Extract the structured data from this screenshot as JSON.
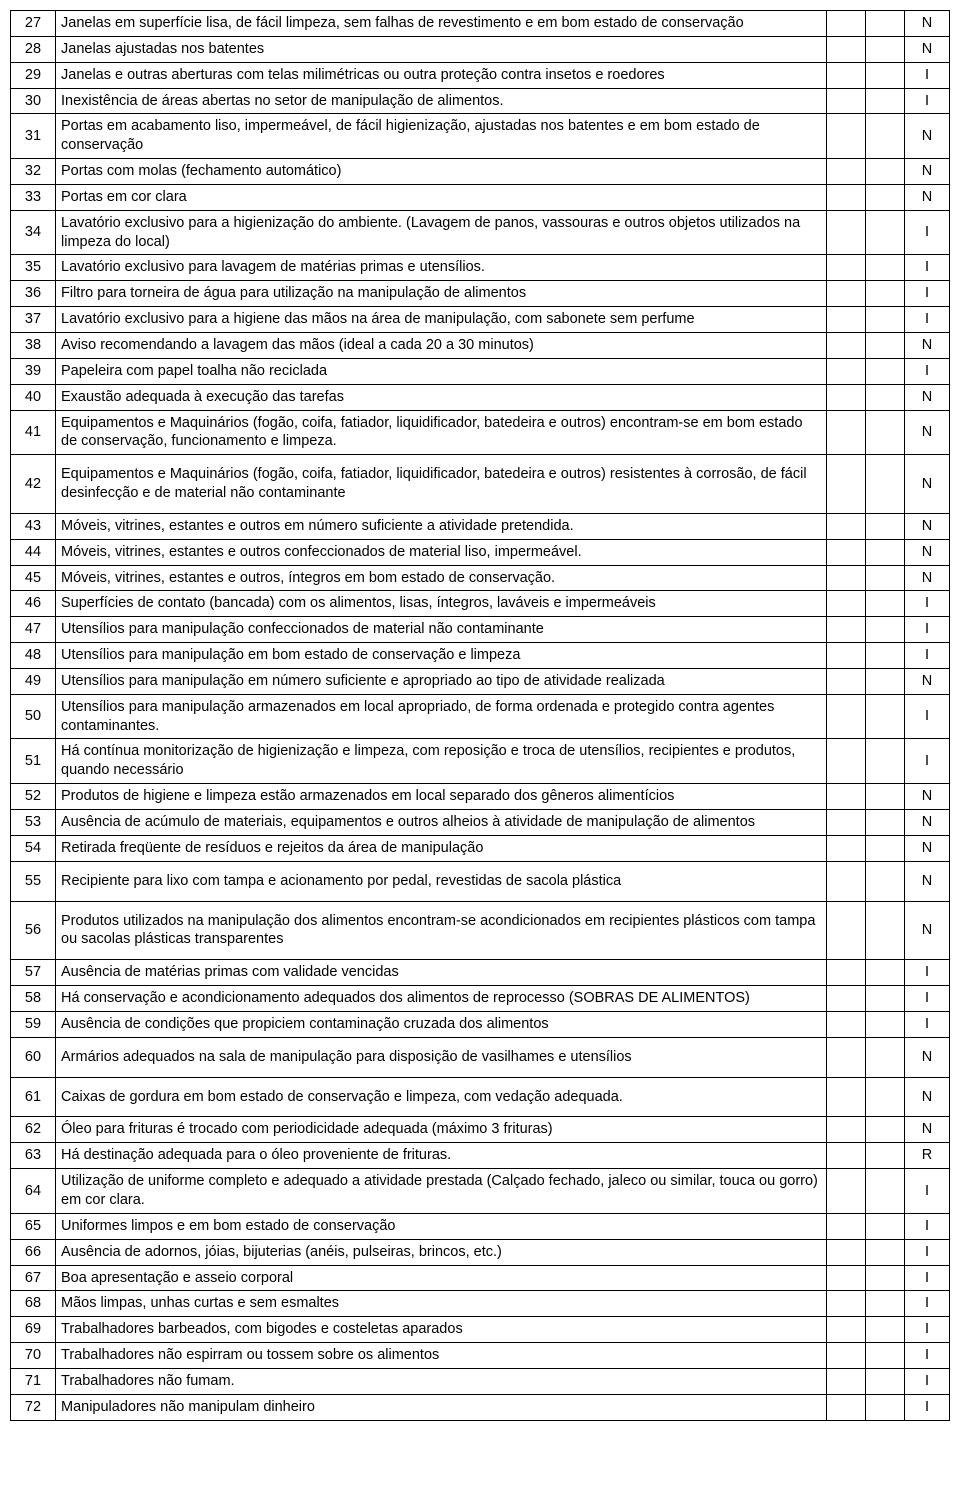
{
  "rows": [
    {
      "num": "27",
      "desc": "Janelas em superfície lisa, de fácil limpeza, sem falhas de revestimento e em bom estado de conservação",
      "code": "N"
    },
    {
      "num": "28",
      "desc": "Janelas ajustadas nos batentes",
      "code": "N"
    },
    {
      "num": "29",
      "desc": "Janelas e outras aberturas com telas milimétricas ou outra proteção contra insetos e roedores",
      "code": "I"
    },
    {
      "num": "30",
      "desc": "Inexistência de  áreas abertas no setor de manipulação de alimentos.",
      "code": "I"
    },
    {
      "num": "31",
      "desc": "Portas em acabamento liso, impermeável, de fácil higienização, ajustadas nos batentes e em bom estado  de conservação",
      "code": "N"
    },
    {
      "num": "32",
      "desc": "Portas com molas (fechamento automático)",
      "code": "N"
    },
    {
      "num": "33",
      "desc": "Portas em cor clara",
      "code": "N"
    },
    {
      "num": "34",
      "desc": "Lavatório exclusivo para a higienização do ambiente. (Lavagem de panos, vassouras e outros objetos utilizados na limpeza do local)",
      "code": "I"
    },
    {
      "num": "35",
      "desc": "Lavatório exclusivo para lavagem de matérias primas e utensílios.",
      "code": "I"
    },
    {
      "num": "36",
      "desc": "Filtro para torneira de água para utilização na manipulação de alimentos",
      "code": "I"
    },
    {
      "num": "37",
      "desc": "Lavatório exclusivo para a higiene das mãos na área de manipulação, com sabonete sem perfume",
      "code": "I"
    },
    {
      "num": "38",
      "desc": "Aviso recomendando a lavagem das mãos (ideal a cada 20 a 30 minutos)",
      "code": "N"
    },
    {
      "num": "39",
      "desc": "Papeleira com papel toalha não reciclada",
      "code": "I"
    },
    {
      "num": "40",
      "desc": "Exaustão adequada à execução das tarefas",
      "code": "N"
    },
    {
      "num": "41",
      "desc": "Equipamentos e Maquinários (fogão, coifa, fatiador, liquidificador, batedeira e outros) encontram-se em bom estado de conservação, funcionamento e limpeza.",
      "code": "N"
    },
    {
      "num": "42",
      "desc": "Equipamentos e Maquinários (fogão, coifa, fatiador, liquidificador, batedeira e outros) resistentes à corrosão, de fácil desinfecção e de material não contaminante",
      "code": "N",
      "pad": true
    },
    {
      "num": "43",
      "desc": "Móveis, vitrines, estantes e outros em número suficiente a atividade pretendida.",
      "code": "N"
    },
    {
      "num": "44",
      "desc": "Móveis, vitrines, estantes e outros confeccionados de material liso, impermeável.",
      "code": "N"
    },
    {
      "num": "45",
      "desc": "Móveis, vitrines, estantes e outros, íntegros em bom estado de conservação.",
      "code": "N"
    },
    {
      "num": "46",
      "desc": "Superfícies de contato (bancada) com os alimentos, lisas, íntegros, laváveis e impermeáveis",
      "code": "I"
    },
    {
      "num": "47",
      "desc": "Utensílios para manipulação confeccionados de material não contaminante",
      "code": "I"
    },
    {
      "num": "48",
      "desc": "Utensílios para manipulação em bom estado de conservação e limpeza",
      "code": "I"
    },
    {
      "num": "49",
      "desc": "Utensílios para manipulação em número suficiente e apropriado ao tipo de atividade realizada",
      "code": "N"
    },
    {
      "num": "50",
      "desc": "Utensílios para manipulação armazenados em local apropriado, de forma ordenada e protegido contra agentes contaminantes.",
      "code": "I"
    },
    {
      "num": "51",
      "desc": "Há contínua monitorização de higienização e limpeza, com reposição e troca de utensílios, recipientes e produtos, quando necessário",
      "code": "I"
    },
    {
      "num": "52",
      "desc": "Produtos de higiene e limpeza estão armazenados em local separado dos gêneros alimentícios",
      "code": "N"
    },
    {
      "num": "53",
      "desc": "Ausência de acúmulo de materiais, equipamentos e outros alheios à atividade de manipulação de alimentos",
      "code": "N"
    },
    {
      "num": "54",
      "desc": "Retirada freqüente de resíduos e rejeitos da área de manipulação",
      "code": "N"
    },
    {
      "num": "55",
      "desc": "Recipiente para lixo com tampa e acionamento por pedal, revestidas de sacola plástica",
      "code": "N",
      "pad": true
    },
    {
      "num": "56",
      "desc": "Produtos utilizados na manipulação dos alimentos encontram-se acondicionados em recipientes plásticos com tampa ou sacolas plásticas transparentes",
      "code": "N",
      "pad": true
    },
    {
      "num": "57",
      "desc": "Ausência de matérias primas com  validade vencidas",
      "code": "I"
    },
    {
      "num": "58",
      "desc": "Há conservação e acondicionamento adequados dos alimentos de reprocesso (SOBRAS DE ALIMENTOS)",
      "code": "I"
    },
    {
      "num": "59",
      "desc": "Ausência de condições que propiciem contaminação cruzada dos alimentos",
      "code": "I"
    },
    {
      "num": "60",
      "desc": "Armários adequados na sala de manipulação  para disposição de vasilhames e utensílios",
      "code": "N",
      "pad": true
    },
    {
      "num": "61",
      "desc": "Caixas de gordura em bom estado de conservação e limpeza, com vedação adequada.",
      "code": "N",
      "pad": true
    },
    {
      "num": "62",
      "desc": "Óleo para frituras é trocado com periodicidade adequada (máximo 3 frituras)",
      "code": "N"
    },
    {
      "num": "63",
      "desc": "Há destinação adequada para o óleo proveniente de frituras.",
      "code": "R"
    },
    {
      "num": "64",
      "desc": "Utilização de uniforme completo e adequado a atividade prestada (Calçado fechado, jaleco ou similar, touca ou gorro) em cor clara.",
      "code": "I"
    },
    {
      "num": "65",
      "desc": "Uniformes limpos e em bom estado de conservação",
      "code": "I"
    },
    {
      "num": "66",
      "desc": "Ausência de adornos, jóias, bijuterias (anéis, pulseiras, brincos, etc.)",
      "code": "I"
    },
    {
      "num": "67",
      "desc": "Boa apresentação e asseio corporal",
      "code": "I"
    },
    {
      "num": "68",
      "desc": "Mãos limpas, unhas curtas e sem esmaltes",
      "code": "I"
    },
    {
      "num": "69",
      "desc": "Trabalhadores barbeados, com bigodes e costeletas aparados",
      "code": "I"
    },
    {
      "num": "70",
      "desc": "Trabalhadores não espirram ou tossem sobre os alimentos",
      "code": "I"
    },
    {
      "num": "71",
      "desc": "Trabalhadores não fumam.",
      "code": "I"
    },
    {
      "num": "72",
      "desc": "Manipuladores não manipulam dinheiro",
      "code": "I"
    }
  ]
}
